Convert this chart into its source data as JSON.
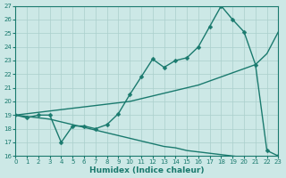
{
  "x": [
    0,
    1,
    2,
    3,
    4,
    5,
    6,
    7,
    8,
    9,
    10,
    11,
    12,
    13,
    14,
    15,
    16,
    17,
    18,
    19,
    20,
    21,
    22,
    23
  ],
  "line1": [
    19.0,
    18.8,
    19.0,
    19.0,
    17.0,
    18.2,
    18.2,
    18.0,
    18.3,
    19.1,
    20.5,
    21.8,
    23.1,
    22.5,
    23.0,
    23.2,
    24.0,
    25.5,
    27.0,
    26.0,
    25.1,
    22.7,
    16.4,
    16.0
  ],
  "line2": [
    19.0,
    19.1,
    19.2,
    19.3,
    19.4,
    19.5,
    19.6,
    19.7,
    19.8,
    19.9,
    20.0,
    20.2,
    20.4,
    20.6,
    20.8,
    21.0,
    21.2,
    21.5,
    21.8,
    22.1,
    22.4,
    22.7,
    23.5,
    25.1
  ],
  "line3": [
    19.0,
    18.9,
    18.8,
    18.7,
    18.5,
    18.3,
    18.1,
    17.9,
    17.7,
    17.5,
    17.3,
    17.1,
    16.9,
    16.7,
    16.6,
    16.4,
    16.3,
    16.2,
    16.1,
    16.0,
    15.9,
    15.9,
    15.85,
    15.8
  ],
  "line_color": "#1a7a6e",
  "bg_color": "#cce8e6",
  "grid_color": "#aacfcc",
  "xlabel": "Humidex (Indice chaleur)",
  "xlim": [
    0,
    23
  ],
  "ylim": [
    16,
    27
  ],
  "yticks": [
    16,
    17,
    18,
    19,
    20,
    21,
    22,
    23,
    24,
    25,
    26,
    27
  ],
  "xticks": [
    0,
    1,
    2,
    3,
    4,
    5,
    6,
    7,
    8,
    9,
    10,
    11,
    12,
    13,
    14,
    15,
    16,
    17,
    18,
    19,
    20,
    21,
    22,
    23
  ],
  "marker_size": 2.5,
  "line_width": 1.0
}
